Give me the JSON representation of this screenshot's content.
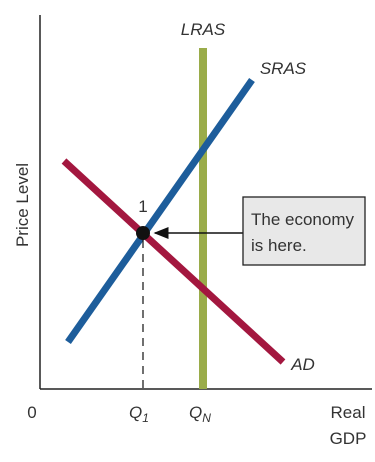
{
  "labels": {
    "lras": "LRAS",
    "sras": "SRAS",
    "ad": "AD",
    "y_axis": "Price Level",
    "origin": "0",
    "q1": {
      "main": "Q",
      "sub": "1"
    },
    "qn": {
      "main": "Q",
      "sub": "N"
    },
    "x_axis": [
      "Real",
      "GDP"
    ],
    "point": "1",
    "callout": [
      "The economy",
      "is here."
    ]
  }
}
